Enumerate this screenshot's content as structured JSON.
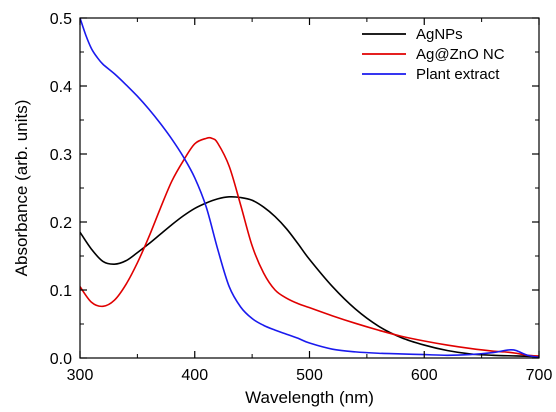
{
  "chart_data": {
    "type": "line",
    "title": "",
    "xlabel": "Wavelength (nm)",
    "ylabel": "Absorbance (arb. units)",
    "xlim": [
      300,
      700
    ],
    "ylim": [
      0.0,
      0.5
    ],
    "x_ticks": [
      "300",
      "400",
      "500",
      "600",
      "700"
    ],
    "y_ticks": [
      "0.0",
      "0.1",
      "0.2",
      "0.3",
      "0.4",
      "0.5"
    ],
    "grid": false,
    "legend_position": "top-right",
    "series": [
      {
        "name": "AgNPs",
        "color": "#000000",
        "x": [
          300,
          310,
          320,
          330,
          340,
          350,
          360,
          370,
          380,
          390,
          400,
          410,
          420,
          430,
          440,
          450,
          460,
          470,
          480,
          490,
          500,
          520,
          540,
          560,
          580,
          600,
          620,
          640,
          660,
          680,
          700
        ],
        "y": [
          0.185,
          0.16,
          0.142,
          0.138,
          0.143,
          0.155,
          0.168,
          0.182,
          0.196,
          0.209,
          0.22,
          0.228,
          0.234,
          0.237,
          0.236,
          0.232,
          0.222,
          0.208,
          0.19,
          0.168,
          0.145,
          0.105,
          0.072,
          0.047,
          0.03,
          0.019,
          0.011,
          0.006,
          0.004,
          0.003,
          0.002
        ]
      },
      {
        "name": "Ag@ZnO NC",
        "color": "#e00000",
        "x": [
          300,
          310,
          320,
          330,
          340,
          350,
          360,
          370,
          380,
          390,
          400,
          410,
          415,
          420,
          430,
          440,
          450,
          460,
          470,
          480,
          490,
          500,
          520,
          540,
          560,
          580,
          600,
          620,
          640,
          660,
          670,
          680,
          690,
          700
        ],
        "y": [
          0.105,
          0.082,
          0.076,
          0.085,
          0.108,
          0.14,
          0.178,
          0.22,
          0.26,
          0.29,
          0.315,
          0.323,
          0.323,
          0.316,
          0.282,
          0.225,
          0.165,
          0.125,
          0.1,
          0.088,
          0.08,
          0.074,
          0.062,
          0.051,
          0.041,
          0.032,
          0.025,
          0.019,
          0.014,
          0.01,
          0.009,
          0.007,
          0.004,
          0.003
        ]
      },
      {
        "name": "Plant extract",
        "color": "#1a1aee",
        "x": [
          300,
          305,
          310,
          315,
          320,
          330,
          340,
          350,
          360,
          370,
          380,
          390,
          400,
          410,
          420,
          430,
          440,
          450,
          460,
          470,
          480,
          490,
          500,
          520,
          540,
          560,
          580,
          600,
          620,
          640,
          660,
          670,
          675,
          680,
          690,
          700
        ],
        "y": [
          0.5,
          0.475,
          0.455,
          0.442,
          0.432,
          0.418,
          0.402,
          0.385,
          0.366,
          0.345,
          0.322,
          0.296,
          0.265,
          0.222,
          0.16,
          0.105,
          0.075,
          0.058,
          0.048,
          0.041,
          0.035,
          0.029,
          0.022,
          0.013,
          0.009,
          0.007,
          0.006,
          0.005,
          0.004,
          0.005,
          0.008,
          0.011,
          0.012,
          0.011,
          0.004,
          0.001
        ]
      }
    ]
  }
}
